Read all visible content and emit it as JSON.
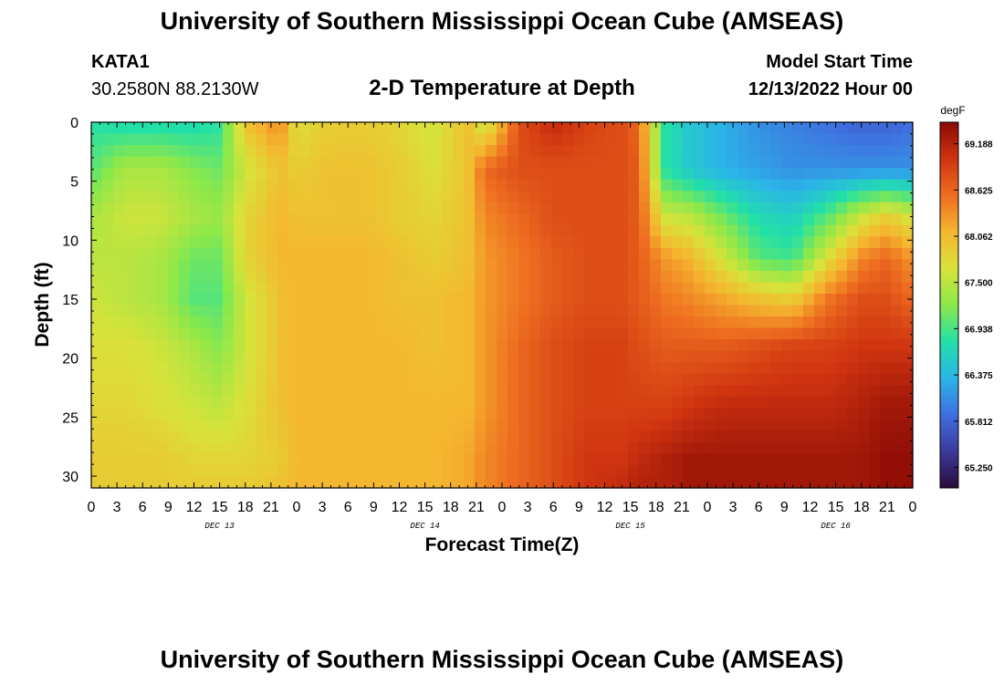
{
  "header": {
    "title": "University of Southern Mississippi Ocean Cube (AMSEAS)",
    "station": "KATA1",
    "coords": "30.2580N  88.2130W",
    "subtitle": "2-D Temperature at Depth",
    "model_start_label": "Model Start Time",
    "model_start_value": "12/13/2022 Hour 00"
  },
  "footer": {
    "title": "University of Southern Mississippi Ocean Cube (AMSEAS)"
  },
  "chart_data": {
    "type": "heatmap",
    "xlabel": "Forecast Time(Z)",
    "ylabel": "Depth (ft)",
    "x_ticks": [
      "0",
      "3",
      "6",
      "9",
      "12",
      "15",
      "18",
      "21",
      "0",
      "3",
      "6",
      "9",
      "12",
      "15",
      "18",
      "21",
      "0",
      "3",
      "6",
      "9",
      "12",
      "15",
      "18",
      "21",
      "0",
      "3",
      "6",
      "9",
      "12",
      "15",
      "18",
      "21",
      "0"
    ],
    "x_hours_range": [
      0,
      96
    ],
    "day_labels": [
      {
        "label": "DEC 13",
        "hour": 15
      },
      {
        "label": "DEC 14",
        "hour": 39
      },
      {
        "label": "DEC 15",
        "hour": 63
      },
      {
        "label": "DEC 16",
        "hour": 87
      }
    ],
    "y_ticks": [
      0,
      5,
      10,
      15,
      20,
      25,
      30
    ],
    "ylim": [
      0,
      31
    ],
    "y_inverted": true,
    "colorbar": {
      "unit": "degF",
      "min": 65.0,
      "max": 69.45,
      "ticks": [
        "69.188",
        "68.625",
        "68.062",
        "67.500",
        "66.938",
        "66.375",
        "65.812",
        "65.250"
      ],
      "colors": [
        "#2a0c3a",
        "#3c3a9c",
        "#3f6fdf",
        "#2bb5e8",
        "#22e0a8",
        "#8be84a",
        "#d9e23a",
        "#f5b62f",
        "#ee6d20",
        "#cf3410",
        "#8a0a05"
      ]
    },
    "depth_levels": [
      0,
      4,
      8,
      11.5,
      15,
      19,
      24,
      28.5,
      31
    ],
    "time_hours": [
      0,
      4,
      8,
      12,
      15,
      18,
      22,
      24,
      28,
      32,
      36,
      40,
      44,
      46,
      50,
      54,
      58,
      62,
      64,
      67,
      70,
      74,
      78,
      82,
      86,
      90,
      93,
      96
    ],
    "temperature": [
      [
        66.8,
        66.7,
        66.7,
        66.7,
        66.8,
        68.0,
        68.4,
        67.7,
        67.9,
        67.9,
        67.8,
        67.6,
        68.0,
        67.5,
        68.8,
        69.1,
        68.9,
        68.8,
        68.6,
        66.8,
        66.5,
        66.3,
        66.1,
        66.0,
        65.9,
        65.8,
        65.8,
        65.9
      ],
      [
        67.0,
        67.4,
        67.4,
        67.2,
        67.1,
        67.6,
        68.0,
        67.9,
        68.0,
        68.0,
        67.9,
        67.7,
        68.0,
        68.6,
        68.8,
        68.8,
        68.8,
        68.8,
        68.7,
        66.8,
        66.5,
        66.3,
        66.2,
        66.1,
        66.1,
        66.1,
        66.1,
        66.1
      ],
      [
        67.4,
        67.6,
        67.6,
        67.4,
        67.3,
        67.8,
        68.1,
        68.0,
        68.0,
        68.0,
        67.9,
        67.8,
        68.0,
        68.4,
        68.6,
        68.8,
        68.8,
        68.8,
        68.7,
        67.6,
        67.5,
        67.1,
        66.7,
        66.6,
        67.0,
        67.6,
        67.9,
        67.6
      ],
      [
        67.5,
        67.5,
        67.4,
        67.1,
        67.1,
        67.8,
        68.1,
        68.1,
        68.1,
        68.1,
        68.0,
        67.9,
        68.0,
        68.3,
        68.5,
        68.7,
        68.8,
        68.8,
        68.7,
        68.3,
        68.1,
        67.6,
        67.0,
        66.9,
        67.7,
        68.4,
        68.6,
        68.3
      ],
      [
        67.6,
        67.5,
        67.4,
        67.0,
        67.0,
        67.6,
        68.0,
        68.1,
        68.1,
        68.1,
        68.0,
        68.0,
        68.1,
        68.3,
        68.5,
        68.7,
        68.8,
        68.8,
        68.7,
        68.5,
        68.4,
        68.2,
        68.0,
        67.9,
        68.5,
        68.8,
        68.8,
        68.6
      ],
      [
        67.7,
        67.7,
        67.6,
        67.4,
        67.2,
        67.6,
        68.0,
        68.1,
        68.1,
        68.1,
        68.1,
        68.0,
        68.1,
        68.3,
        68.6,
        68.8,
        68.9,
        68.9,
        68.8,
        68.7,
        68.7,
        68.7,
        68.8,
        68.9,
        68.9,
        69.0,
        69.0,
        69.0
      ],
      [
        67.8,
        67.8,
        67.7,
        67.6,
        67.5,
        67.7,
        68.0,
        68.1,
        68.1,
        68.1,
        68.1,
        68.1,
        68.1,
        68.3,
        68.6,
        68.8,
        68.9,
        68.9,
        68.9,
        68.9,
        69.0,
        69.1,
        69.1,
        69.1,
        69.1,
        69.2,
        69.3,
        69.3
      ],
      [
        67.9,
        67.9,
        67.9,
        67.8,
        67.8,
        67.8,
        67.9,
        68.1,
        68.1,
        68.1,
        68.1,
        68.1,
        68.2,
        68.4,
        68.6,
        68.8,
        69.0,
        69.0,
        69.1,
        69.2,
        69.3,
        69.3,
        69.3,
        69.3,
        69.3,
        69.3,
        69.4,
        69.4
      ],
      [
        67.9,
        67.9,
        67.9,
        67.9,
        67.9,
        67.9,
        68.0,
        68.1,
        68.1,
        68.1,
        68.1,
        68.1,
        68.2,
        68.4,
        68.6,
        68.8,
        69.0,
        69.1,
        69.2,
        69.2,
        69.3,
        69.3,
        69.3,
        69.3,
        69.3,
        69.3,
        69.4,
        69.4
      ]
    ]
  }
}
